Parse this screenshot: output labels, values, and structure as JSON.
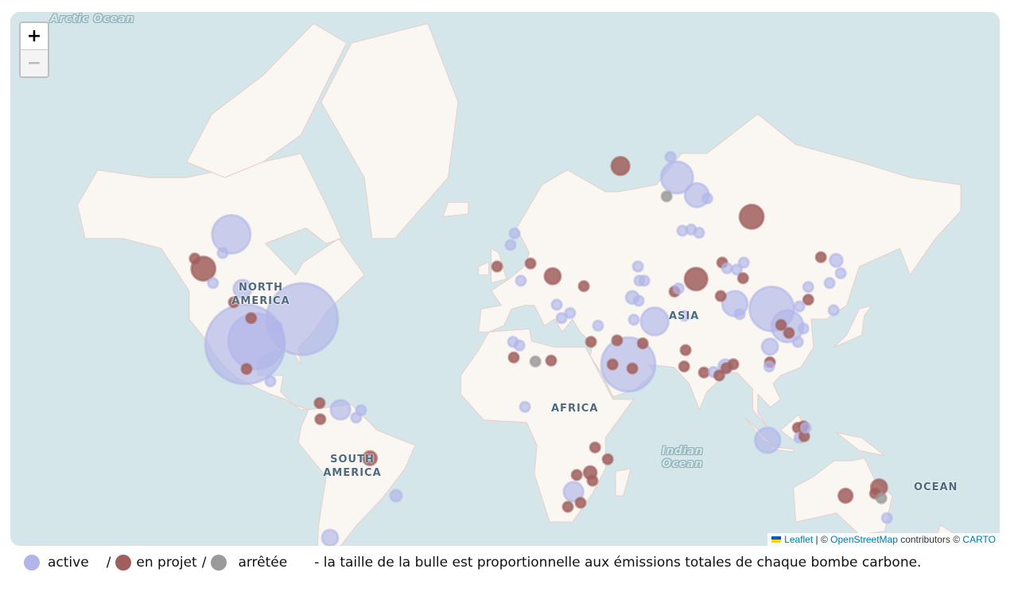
{
  "map": {
    "zoom_in_label": "+",
    "zoom_out_label": "−",
    "labels": {
      "arctic_ocean": "Arctic Ocean",
      "north_america": "NORTH AMERICA",
      "asia": "ASIA",
      "africa": "AFRICA",
      "south_america": "SOUTH AMERICA",
      "indian_ocean": "Indian Ocean",
      "ocean": "OCEAN"
    },
    "colors": {
      "water": "#d4e6e9",
      "land": "#faf6f1",
      "border": "#e8cfc9"
    },
    "attribution": {
      "leaflet": "Leaflet",
      "sep": " | © ",
      "osm": "OpenStreetMap",
      "contributors": " contributors © ",
      "carto": "CARTO"
    }
  },
  "status_colors": {
    "active": "#b1b6ea",
    "en projet": "#a05f5d",
    "arrêtée": "#9a9a9a"
  },
  "bubbles": [
    [
      -102,
      32,
      "active",
      100
    ],
    [
      -79.5,
      40,
      "active",
      81
    ],
    [
      -97.6,
      33,
      "active",
      49
    ],
    [
      -107.4,
      60.8,
      "active",
      23
    ],
    [
      -118.4,
      53.5,
      "en projet",
      9
    ],
    [
      49,
      25,
      "active",
      46
    ],
    [
      105.5,
      43,
      "active",
      31
    ],
    [
      68.2,
      70,
      "active",
      16
    ],
    [
      76,
      67.5,
      "active",
      9
    ],
    [
      97.6,
      64,
      "en projet",
      9
    ],
    [
      45.9,
      71.5,
      "en projet",
      5
    ],
    [
      59.4,
      39.3,
      "active",
      12
    ],
    [
      75.7,
      51,
      "en projet",
      8
    ],
    [
      91,
      44.5,
      "active",
      10
    ],
    [
      111.7,
      37.8,
      "active",
      16
    ],
    [
      103.9,
      -4,
      "active",
      10
    ],
    [
      19.2,
      51.7,
      "en projet",
      4
    ],
    [
      -64.4,
      8,
      "active",
      6
    ],
    [
      -52.8,
      -11,
      "en projet",
      3
    ],
    [
      27.4,
      -23.6,
      "active",
      6
    ],
    [
      34,
      -16.5,
      "en projet",
      2.5
    ],
    [
      147.8,
      -22,
      "en projet",
      4
    ],
    [
      134.6,
      -25,
      "en projet",
      3
    ],
    [
      -103,
      48.5,
      "active",
      5
    ],
    [
      -68.5,
      -39,
      "active",
      4
    ],
    [
      -42.5,
      -25,
      "active",
      2
    ],
    [
      -121.8,
      55.8,
      "en projet",
      1.5
    ],
    [
      -110.8,
      57,
      "active",
      1.5
    ],
    [
      -114.6,
      50,
      "active",
      1.5
    ],
    [
      -92,
      18.9,
      "active",
      1.5
    ],
    [
      -101.4,
      23.4,
      "en projet",
      1.5
    ],
    [
      -106.4,
      44.9,
      "en projet",
      1.5
    ],
    [
      -99.6,
      40.3,
      "en projet",
      1.5
    ],
    [
      -89.5,
      37.8,
      "active",
      1.5
    ],
    [
      -72.6,
      10.6,
      "en projet",
      1.5
    ],
    [
      -72.3,
      4.3,
      "en projet",
      1.5
    ],
    [
      -58.2,
      4.9,
      "active",
      1.5
    ],
    [
      -56.3,
      7.8,
      "active",
      1.5
    ],
    [
      4.2,
      61,
      "active",
      1.5
    ],
    [
      2.6,
      58.7,
      "active",
      1.5
    ],
    [
      -2.7,
      54,
      "en projet",
      1.5
    ],
    [
      10.5,
      54.7,
      "en projet",
      1.5
    ],
    [
      6.7,
      50.6,
      "active",
      1.5
    ],
    [
      31.5,
      49.2,
      "en projet",
      1.5
    ],
    [
      20.8,
      44.2,
      "active",
      1.5
    ],
    [
      26.1,
      41.8,
      "active",
      1.5
    ],
    [
      22.7,
      40.3,
      "active",
      1.5
    ],
    [
      3.6,
      32.8,
      "active",
      1.5
    ],
    [
      6.1,
      31.6,
      "active",
      1.5
    ],
    [
      3.9,
      27.5,
      "en projet",
      1.5
    ],
    [
      12.4,
      26.1,
      "arrêtée",
      1.5
    ],
    [
      18.6,
      26.4,
      "en projet",
      1.5
    ],
    [
      8.3,
      9.1,
      "active",
      1.5
    ],
    [
      35.9,
      -6.8,
      "en projet",
      1.5
    ],
    [
      40.9,
      -11.4,
      "en projet",
      1.5
    ],
    [
      28.7,
      -17.4,
      "en projet",
      1.5
    ],
    [
      34.9,
      -19.5,
      "en projet",
      1.5
    ],
    [
      30.2,
      -27.5,
      "en projet",
      1.5
    ],
    [
      25.2,
      -28.9,
      "en projet",
      1.5
    ],
    [
      37.1,
      38,
      "active",
      1.5
    ],
    [
      34.3,
      32.8,
      "en projet",
      1.5
    ],
    [
      44.6,
      33.3,
      "en projet",
      1.5
    ],
    [
      54.7,
      32.3,
      "en projet",
      1.5
    ],
    [
      42.8,
      25,
      "en projet",
      1.5
    ],
    [
      50.6,
      23.6,
      "en projet",
      1.5
    ],
    [
      65.6,
      72.6,
      "active",
      1.5
    ],
    [
      64.1,
      67.3,
      "arrêtée",
      1.5
    ],
    [
      70.3,
      61.5,
      "active",
      1.5
    ],
    [
      73.8,
      61.7,
      "active",
      1.5
    ],
    [
      76.9,
      61.1,
      "active",
      1.5
    ],
    [
      80.1,
      67,
      "active",
      1.5
    ],
    [
      52.8,
      54,
      "active",
      1.5
    ],
    [
      53.4,
      50.6,
      "active",
      1.5
    ],
    [
      55.3,
      50.6,
      "active",
      1.5
    ],
    [
      50.6,
      46.2,
      "active",
      2.5
    ],
    [
      53.1,
      45.3,
      "active",
      1.5
    ],
    [
      51.2,
      39.8,
      "active",
      1.5
    ],
    [
      67.2,
      47.8,
      "en projet",
      1.5
    ],
    [
      68.8,
      48.6,
      "active",
      1.5
    ],
    [
      71,
      41,
      "active",
      1.5
    ],
    [
      86,
      54.9,
      "en projet",
      1.5
    ],
    [
      87.9,
      53.6,
      "active",
      1.5
    ],
    [
      94.5,
      54.9,
      "active",
      1.5
    ],
    [
      91.7,
      53.3,
      "active",
      1.5
    ],
    [
      94.2,
      51.2,
      "en projet",
      1.5
    ],
    [
      85.4,
      46.6,
      "en projet",
      1.5
    ],
    [
      92.9,
      41.5,
      "active",
      1.5
    ],
    [
      119.9,
      49,
      "active",
      1.5
    ],
    [
      119.9,
      45.6,
      "en projet",
      1.5
    ],
    [
      124.9,
      56.1,
      "en projet",
      1.5
    ],
    [
      130.9,
      55.4,
      "active",
      2.5
    ],
    [
      132.7,
      52.4,
      "active",
      1.5
    ],
    [
      128.3,
      50,
      "active",
      1.5
    ],
    [
      129.9,
      42.6,
      "active",
      1.5
    ],
    [
      116.4,
      43.7,
      "active",
      1.5
    ],
    [
      118,
      37.1,
      "active",
      1.5
    ],
    [
      115.8,
      32.8,
      "active",
      1.5
    ],
    [
      109.2,
      38.2,
      "en projet",
      1.5
    ],
    [
      112.3,
      35.7,
      "en projet",
      1.5
    ],
    [
      104.8,
      31.2,
      "active",
      4
    ],
    [
      104.8,
      25.8,
      "en projet",
      1.5
    ],
    [
      104.5,
      24.3,
      "active",
      1.5
    ],
    [
      71.6,
      30,
      "en projet",
      1.5
    ],
    [
      71,
      24.3,
      "en projet",
      1.5
    ],
    [
      78.8,
      22.1,
      "en projet",
      1.5
    ],
    [
      82.6,
      22.3,
      "active",
      1.5
    ],
    [
      87.3,
      24.3,
      "active",
      3
    ],
    [
      87.6,
      23.7,
      "en projet",
      1.5
    ],
    [
      84.8,
      21,
      "en projet",
      1.5
    ],
    [
      90.4,
      25.1,
      "en projet",
      1.5
    ],
    [
      115.8,
      0.9,
      "en projet",
      1.5
    ],
    [
      118,
      1.5,
      "en projet",
      1.5
    ],
    [
      116.4,
      -3,
      "active",
      1.5
    ],
    [
      118.3,
      -2.4,
      "en projet",
      1.5
    ],
    [
      118.9,
      0.9,
      "active",
      1.5
    ],
    [
      146.2,
      -24.2,
      "en projet",
      1.5
    ],
    [
      148.7,
      -25.9,
      "arrêtée",
      1.5
    ],
    [
      150.9,
      -32.7,
      "active",
      1.5
    ]
  ],
  "legend": {
    "active": "active",
    "sep1": "/",
    "en_projet": "en projet",
    "sep2": "/",
    "arretee": "arrêtée",
    "note": "- la taille de la bulle est proportionnelle aux émissions totales de chaque bombe carbone."
  }
}
